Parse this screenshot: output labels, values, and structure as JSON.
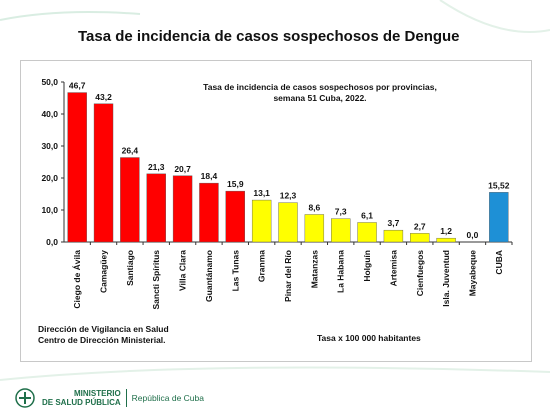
{
  "page_title": "Tasa de incidencia de casos sospechosos de Dengue",
  "footer": {
    "source_line1": "Dirección de Vigilancia en Salud",
    "source_line2": "Centro de Dirección Ministerial.",
    "rate_note": "Tasa x 100 000 habitantes",
    "ministry_line1": "MINISTERIO",
    "ministry_line2": "DE SALUD PÚBLICA",
    "republic": "República de Cuba"
  },
  "colors": {
    "red": "#ff0000",
    "yellow": "#ffff00",
    "blue": "#1e90d6",
    "brand": "#1f6f4a"
  },
  "chart_data": {
    "type": "bar",
    "title": "Tasa de incidencia de casos sospechosos por provincias, semana 51 Cuba, 2022.",
    "title_line1": "Tasa de incidencia de casos sospechosos por provincias,",
    "title_line2": "semana 51 Cuba, 2022.",
    "categories": [
      "Ciego de Ávila",
      "Camagüey",
      "Santiago",
      "Sancti Spíritus",
      "Villa Clara",
      "Guantánamo",
      "Las Tunas",
      "Granma",
      "Pinar del Río",
      "Matanzas",
      "La Habana",
      "Holguín",
      "Artemisa",
      "Cienfuegos",
      "Isla. Juventud",
      "Mayabeque",
      "CUBA"
    ],
    "values": [
      46.7,
      43.2,
      26.4,
      21.3,
      20.7,
      18.4,
      15.9,
      13.1,
      12.3,
      8.6,
      7.3,
      6.1,
      3.7,
      2.7,
      1.2,
      0.0,
      15.52
    ],
    "value_labels": [
      "46,7",
      "43,2",
      "26,4",
      "21,3",
      "20,7",
      "18,4",
      "15,9",
      "13,1",
      "12,3",
      "8,6",
      "7,3",
      "6,1",
      "3,7",
      "2,7",
      "1,2",
      "0,0",
      "15,52"
    ],
    "bar_colors": [
      "red",
      "red",
      "red",
      "red",
      "red",
      "red",
      "red",
      "yellow",
      "yellow",
      "yellow",
      "yellow",
      "yellow",
      "yellow",
      "yellow",
      "yellow",
      "yellow",
      "blue"
    ],
    "ylim": [
      0,
      50
    ],
    "yticks": [
      0,
      10,
      20,
      30,
      40,
      50
    ],
    "ytick_labels": [
      "0,0",
      "10,0",
      "20,0",
      "30,0",
      "40,0",
      "50,0"
    ],
    "xlabel": "",
    "ylabel": "",
    "grid": false,
    "legend": "none"
  }
}
